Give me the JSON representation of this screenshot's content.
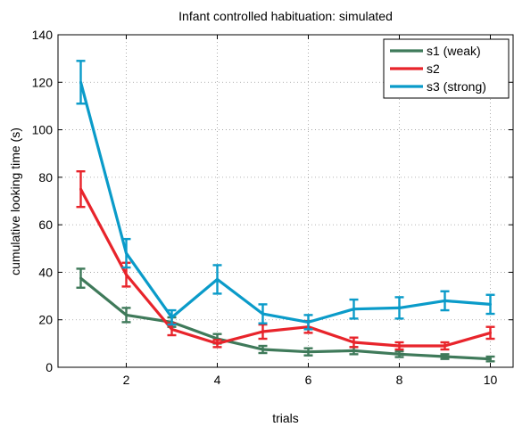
{
  "chart_data": {
    "type": "line",
    "title": "Infant controlled habituation: simulated",
    "xlabel": "trials",
    "ylabel": "cumulative looking time (s)",
    "xlim": [
      0.5,
      10.5
    ],
    "ylim": [
      0,
      140
    ],
    "xticks": [
      2,
      4,
      6,
      8,
      10
    ],
    "yticks": [
      0,
      20,
      40,
      60,
      80,
      100,
      120,
      140
    ],
    "grid": "dotted",
    "legend_position": "top-right",
    "x": [
      1,
      2,
      3,
      4,
      5,
      6,
      7,
      8,
      9,
      10
    ],
    "series": [
      {
        "name": "s1 (weak)",
        "color": "#3f7a5a",
        "values": [
          37.5,
          22,
          19,
          12,
          7.5,
          6.5,
          7,
          5.5,
          4.5,
          3.5
        ],
        "errors": [
          4,
          3,
          2,
          2,
          1.5,
          1.5,
          1.5,
          1.2,
          1,
          1
        ]
      },
      {
        "name": "s2",
        "color": "#e8242b",
        "values": [
          75,
          39,
          16,
          10,
          15,
          17,
          10.5,
          9,
          9,
          14.5
        ],
        "errors": [
          7.5,
          5,
          2.5,
          1.5,
          3,
          2.5,
          2,
          1.5,
          1.5,
          2.5
        ]
      },
      {
        "name": "s3 (strong)",
        "color": "#0a9bc9",
        "values": [
          120,
          48,
          21,
          37,
          22.5,
          19,
          24.5,
          25,
          28,
          26.5
        ],
        "errors": [
          9,
          6,
          3,
          6,
          4,
          3,
          4,
          4.5,
          4,
          4
        ]
      }
    ]
  }
}
